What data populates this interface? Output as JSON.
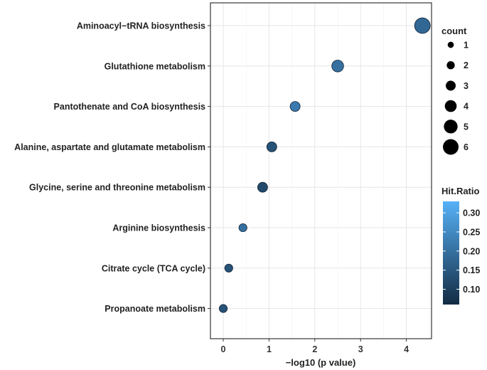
{
  "chart_data": {
    "type": "scatter",
    "title": "",
    "xlabel": "−log10 (p value)",
    "ylabel": "",
    "xlim": [
      -0.28,
      4.55
    ],
    "xticks": [
      0,
      1,
      2,
      3,
      4
    ],
    "xtick_labels": [
      "0",
      "1",
      "2",
      "3",
      "4"
    ],
    "grid": true,
    "categories": [
      "Aminoacyl−tRNA biosynthesis",
      "Glutathione metabolism",
      "Pantothenate and CoA biosynthesis",
      "Alanine, aspartate and glutamate metabolism",
      "Glycine, serine and threonine metabolism",
      "Arginine biosynthesis",
      "Citrate cycle (TCA cycle)",
      "Propanoate metabolism"
    ],
    "points": [
      {
        "pathway": "Aminoacyl−tRNA biosynthesis",
        "x": 4.35,
        "count": 6,
        "hit_ratio": 0.18
      },
      {
        "pathway": "Glutathione metabolism",
        "x": 2.5,
        "count": 4,
        "hit_ratio": 0.2
      },
      {
        "pathway": "Pantothenate and CoA biosynthesis",
        "x": 1.57,
        "count": 3,
        "hit_ratio": 0.22
      },
      {
        "pathway": "Alanine, aspartate and glutamate metabolism",
        "x": 1.06,
        "count": 3,
        "hit_ratio": 0.14
      },
      {
        "pathway": "Glycine, serine and threonine metabolism",
        "x": 0.86,
        "count": 3,
        "hit_ratio": 0.12
      },
      {
        "pathway": "Arginine biosynthesis",
        "x": 0.43,
        "count": 2,
        "hit_ratio": 0.2
      },
      {
        "pathway": "Citrate cycle (TCA cycle)",
        "x": 0.12,
        "count": 2,
        "hit_ratio": 0.14
      },
      {
        "pathway": "Propanoate metabolism",
        "x": 0.0,
        "count": 2,
        "hit_ratio": 0.14
      }
    ],
    "legend_size": {
      "title": "count",
      "values": [
        1,
        2,
        3,
        4,
        5,
        6
      ],
      "labels": [
        "1",
        "2",
        "3",
        "4",
        "5",
        "6"
      ]
    },
    "legend_color": {
      "title": "Hit.Ratio",
      "min": 0.06,
      "max": 0.33,
      "ticks": [
        0.1,
        0.15,
        0.2,
        0.25,
        0.3
      ],
      "tick_labels": [
        "0.10",
        "0.15",
        "0.20",
        "0.25",
        "0.30"
      ],
      "low_color": "#132B43",
      "high_color": "#56B1F7"
    }
  }
}
